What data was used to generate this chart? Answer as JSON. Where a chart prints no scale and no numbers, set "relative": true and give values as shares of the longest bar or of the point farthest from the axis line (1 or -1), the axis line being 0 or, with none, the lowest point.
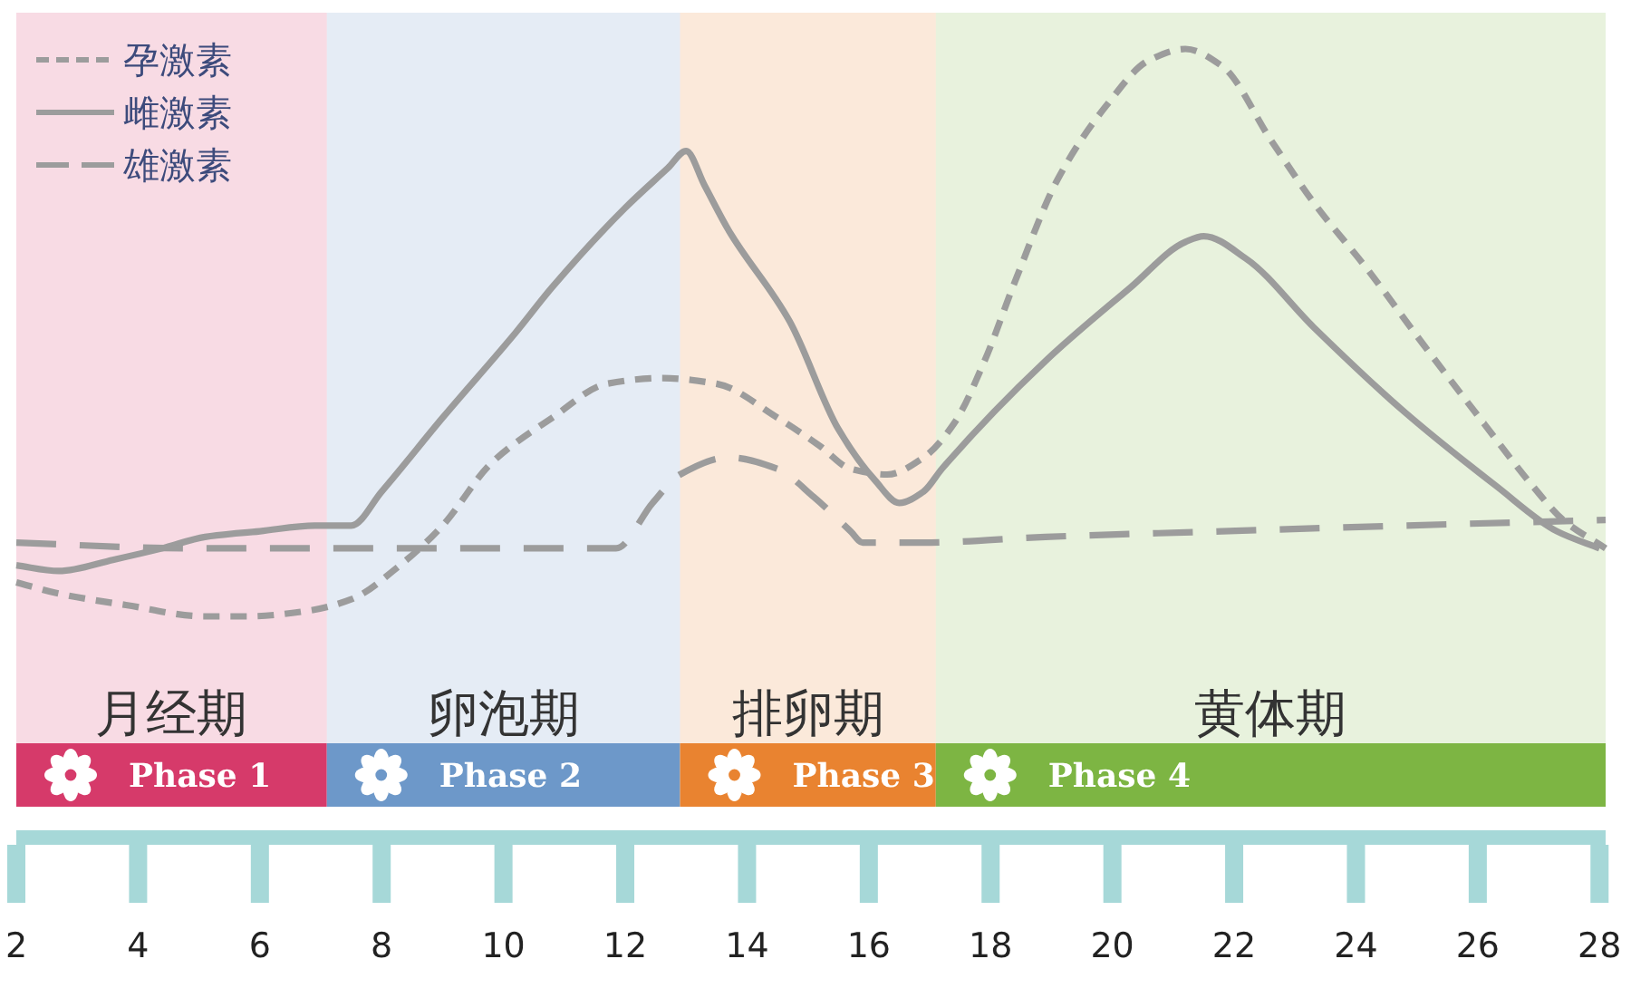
{
  "chart_data": {
    "type": "line",
    "relative": true,
    "xlim": [
      2,
      28.1
    ],
    "xticks": [
      2,
      4,
      6,
      8,
      10,
      12,
      14,
      16,
      18,
      20,
      22,
      24,
      26,
      28
    ],
    "legend": "top left",
    "series": [
      {
        "name": "孕激素",
        "color": "#9c9c9c",
        "line_style": "dotted",
        "x": [
          2,
          2.7,
          3.8,
          5.1,
          5.8,
          6.8,
          7.5,
          8.3,
          9.0,
          9.8,
          10.8,
          11.7,
          12.6,
          13.5,
          14.5,
          15.2,
          15.7,
          16.3,
          16.9,
          17.4,
          17.9,
          18.4,
          19.1,
          19.9,
          20.6,
          21.2,
          21.8,
          22.6,
          23.3,
          24.2,
          25.1,
          26.1,
          26.9,
          27.4,
          28.1
        ],
        "values": [
          0.06,
          0.04,
          0.02,
          0.0,
          0.0,
          0.01,
          0.03,
          0.09,
          0.16,
          0.27,
          0.35,
          0.41,
          0.42,
          0.41,
          0.35,
          0.3,
          0.26,
          0.25,
          0.28,
          0.34,
          0.45,
          0.59,
          0.77,
          0.9,
          0.98,
          1.0,
          0.97,
          0.84,
          0.73,
          0.61,
          0.48,
          0.34,
          0.23,
          0.17,
          0.12
        ]
      },
      {
        "name": "雌激素",
        "color": "#9c9c9c",
        "line_style": "solid",
        "x": [
          2,
          2.7,
          3.6,
          4.4,
          5.1,
          6.0,
          6.9,
          7.5,
          8.0,
          9.0,
          10.2,
          10.8,
          12.0,
          12.7,
          13.0,
          13.3,
          13.7,
          14.7,
          15.5,
          16.1,
          16.5,
          16.9,
          17.2,
          18.9,
          20.3,
          21.2,
          21.5,
          22.2,
          23.3,
          24.8,
          26.3,
          27.3,
          28.0
        ],
        "values": [
          0.09,
          0.08,
          0.1,
          0.12,
          0.14,
          0.15,
          0.16,
          0.16,
          0.22,
          0.35,
          0.5,
          0.58,
          0.72,
          0.79,
          0.82,
          0.76,
          0.68,
          0.52,
          0.33,
          0.24,
          0.2,
          0.22,
          0.26,
          0.45,
          0.58,
          0.66,
          0.67,
          0.63,
          0.51,
          0.36,
          0.23,
          0.15,
          0.12
        ]
      },
      {
        "name": "雄激素",
        "color": "#9c9c9c",
        "line_style": "dashed",
        "x": [
          2,
          4.8,
          7.8,
          10.3,
          11.85,
          12.45,
          12.9,
          13.7,
          14.5,
          15.1,
          15.7,
          15.9,
          16.9,
          18.9,
          21.8,
          24.8,
          28.1
        ],
        "values": [
          0.13,
          0.12,
          0.12,
          0.12,
          0.12,
          0.2,
          0.25,
          0.28,
          0.26,
          0.21,
          0.15,
          0.13,
          0.13,
          0.14,
          0.15,
          0.16,
          0.17
        ]
      }
    ],
    "bands": [
      {
        "axis": "x",
        "from": 2,
        "to": 7.1,
        "label": "月经期",
        "color": "#d63a6a"
      },
      {
        "axis": "x",
        "from": 7.1,
        "to": 12.9,
        "label": "卵泡期",
        "color": "#6d98c9"
      },
      {
        "axis": "x",
        "from": 12.9,
        "to": 17.1,
        "label": "排卵期",
        "color": "#e98330"
      },
      {
        "axis": "x",
        "from": 17.1,
        "to": 28.1,
        "label": "黄体期",
        "color": "#7db543"
      }
    ],
    "annotations": [
      "Phase 1",
      "Phase 2",
      "Phase 3",
      "Phase 4"
    ]
  }
}
